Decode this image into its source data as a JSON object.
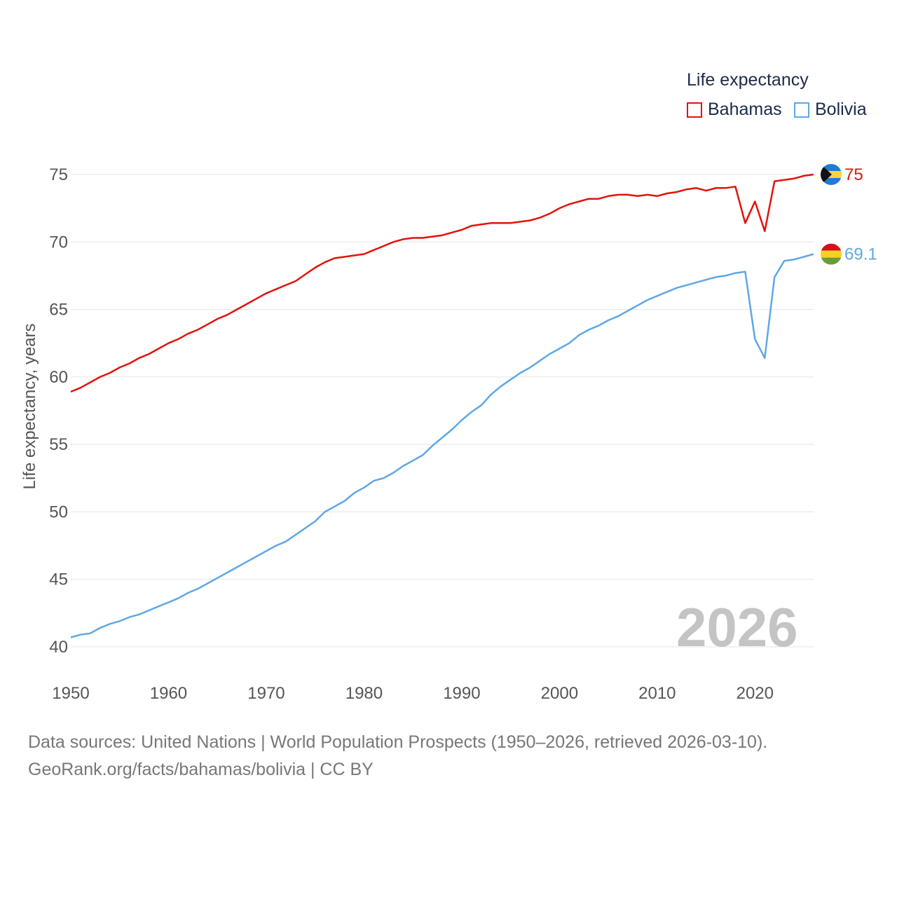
{
  "legend": {
    "title": "Life expectancy",
    "items": [
      {
        "label": "Bahamas",
        "color": "#e3120b"
      },
      {
        "label": "Bolivia",
        "color": "#5ea7e6"
      }
    ]
  },
  "current_year": "2026",
  "footer": {
    "line1": "Data sources: United Nations | World Population Prospects (1950–2026, retrieved 2026-03-10).",
    "line2": "GeoRank.org/facts/bahamas/bolivia | CC BY"
  },
  "chart_data": {
    "type": "line",
    "title": "Life expectancy",
    "xlabel": "",
    "ylabel": "Life expectancy, years",
    "xlim": [
      1950,
      2026
    ],
    "ylim": [
      39,
      77
    ],
    "xticks": [
      1950,
      1960,
      1970,
      1980,
      1990,
      2000,
      2010,
      2020
    ],
    "yticks": [
      40,
      45,
      50,
      55,
      60,
      65,
      70,
      75
    ],
    "grid": true,
    "x": [
      1950,
      1951,
      1952,
      1953,
      1954,
      1955,
      1956,
      1957,
      1958,
      1959,
      1960,
      1961,
      1962,
      1963,
      1964,
      1965,
      1966,
      1967,
      1968,
      1969,
      1970,
      1971,
      1972,
      1973,
      1974,
      1975,
      1976,
      1977,
      1978,
      1979,
      1980,
      1981,
      1982,
      1983,
      1984,
      1985,
      1986,
      1987,
      1988,
      1989,
      1990,
      1991,
      1992,
      1993,
      1994,
      1995,
      1996,
      1997,
      1998,
      1999,
      2000,
      2001,
      2002,
      2003,
      2004,
      2005,
      2006,
      2007,
      2008,
      2009,
      2010,
      2011,
      2012,
      2013,
      2014,
      2015,
      2016,
      2017,
      2018,
      2019,
      2020,
      2021,
      2022,
      2023,
      2024,
      2025,
      2026
    ],
    "series": [
      {
        "name": "Bahamas",
        "color": "#e3120b",
        "end_label": "75",
        "values": [
          58.9,
          59.2,
          59.6,
          60.0,
          60.3,
          60.7,
          61.0,
          61.4,
          61.7,
          62.1,
          62.5,
          62.8,
          63.2,
          63.5,
          63.9,
          64.3,
          64.6,
          65.0,
          65.4,
          65.8,
          66.2,
          66.5,
          66.8,
          67.1,
          67.6,
          68.1,
          68.5,
          68.8,
          68.9,
          69.0,
          69.1,
          69.4,
          69.7,
          70.0,
          70.2,
          70.3,
          70.3,
          70.4,
          70.5,
          70.7,
          70.9,
          71.2,
          71.3,
          71.4,
          71.4,
          71.4,
          71.5,
          71.6,
          71.8,
          72.1,
          72.5,
          72.8,
          73.0,
          73.2,
          73.2,
          73.4,
          73.5,
          73.5,
          73.4,
          73.5,
          73.4,
          73.6,
          73.7,
          73.9,
          74.0,
          73.8,
          74.0,
          74.0,
          74.1,
          71.4,
          73.0,
          70.8,
          74.5,
          74.6,
          74.7,
          74.9,
          75.0
        ]
      },
      {
        "name": "Bolivia",
        "color": "#5ea7e6",
        "end_label": "69.1",
        "values": [
          40.7,
          40.9,
          41.0,
          41.4,
          41.7,
          41.9,
          42.2,
          42.4,
          42.7,
          43.0,
          43.3,
          43.6,
          44.0,
          44.3,
          44.7,
          45.1,
          45.5,
          45.9,
          46.3,
          46.7,
          47.1,
          47.5,
          47.8,
          48.3,
          48.8,
          49.3,
          50.0,
          50.4,
          50.8,
          51.4,
          51.8,
          52.3,
          52.5,
          52.9,
          53.4,
          53.8,
          54.2,
          54.9,
          55.5,
          56.1,
          56.8,
          57.4,
          57.9,
          58.7,
          59.3,
          59.8,
          60.3,
          60.7,
          61.2,
          61.7,
          62.1,
          62.5,
          63.1,
          63.5,
          63.8,
          64.2,
          64.5,
          64.9,
          65.3,
          65.7,
          66.0,
          66.3,
          66.6,
          66.8,
          67.0,
          67.2,
          67.4,
          67.5,
          67.7,
          67.8,
          62.8,
          61.4,
          67.4,
          68.6,
          68.7,
          68.9,
          69.1
        ]
      }
    ]
  }
}
